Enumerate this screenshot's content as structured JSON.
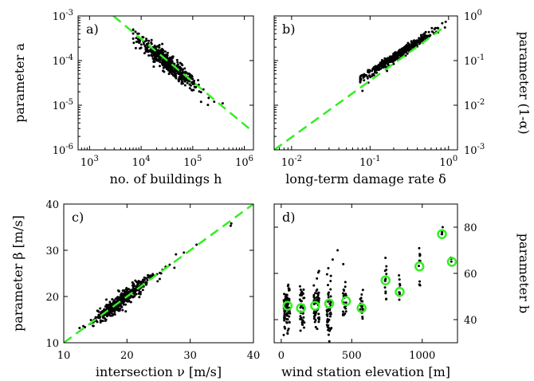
{
  "colors": {
    "fit": "#33ee22",
    "points": "#000000",
    "axes": "#000000"
  },
  "chart_data": [
    {
      "id": "a",
      "panel_label": "a)",
      "type": "scatter",
      "xlabel": "no. of buildings h",
      "ylabel": "parameter a",
      "xscale": "log",
      "yscale": "log",
      "xlim": [
        600,
        1500000
      ],
      "ylim": [
        1e-06,
        0.001
      ],
      "xticks": [
        {
          "v": 1000,
          "b": "10",
          "e": "3"
        },
        {
          "v": 10000,
          "b": "10",
          "e": "4"
        },
        {
          "v": 100000,
          "b": "10",
          "e": "5"
        },
        {
          "v": 1000000,
          "b": "10",
          "e": "6"
        }
      ],
      "yticks": [
        {
          "v": 1e-06,
          "b": "10",
          "e": "-6"
        },
        {
          "v": 1e-05,
          "b": "10",
          "e": "-5"
        },
        {
          "v": 0.0001,
          "b": "10",
          "e": "-4"
        },
        {
          "v": 0.001,
          "b": "10",
          "e": "-3"
        }
      ],
      "fit_line": [
        [
          2900,
          0.001
        ],
        [
          1500000,
          2.5e-06
        ]
      ],
      "cloud": {
        "n": 500,
        "center_x": 34000,
        "center_y": 8.5e-05,
        "sd_logx": 0.28,
        "slope": -0.95,
        "sd_resid": 0.1,
        "xmin": 7000,
        "xmax": 380000
      },
      "points": [
        [
          8500,
          0.0004
        ],
        [
          7200,
          0.00025
        ],
        [
          380000,
          1.1e-05
        ],
        [
          260000,
          1.2e-05
        ],
        [
          95000,
          2.2e-05
        ]
      ]
    },
    {
      "id": "b",
      "panel_label": "b)",
      "type": "scatter",
      "xlabel": "long-term damage rate δ",
      "ylabel_right": "parameter (1-α)",
      "xscale": "log",
      "yscale": "log",
      "xlim": [
        0.006,
        1.3
      ],
      "ylim": [
        0.001,
        1
      ],
      "xticks": [
        {
          "v": 0.01,
          "b": "10",
          "e": "-2"
        },
        {
          "v": 0.1,
          "b": "10",
          "e": "-1"
        },
        {
          "v": 1,
          "b": "10",
          "e": "0"
        }
      ],
      "yticks": [
        {
          "v": 0.001,
          "b": "10",
          "e": "-3"
        },
        {
          "v": 0.01,
          "b": "10",
          "e": "-2"
        },
        {
          "v": 0.1,
          "b": "10",
          "e": "-1"
        },
        {
          "v": 1,
          "b": "10",
          "e": "0"
        }
      ],
      "fit_line": [
        [
          0.006,
          0.001
        ],
        [
          0.93,
          0.6
        ]
      ],
      "cloud": {
        "n": 500,
        "center_x": 0.22,
        "center_y": 0.13,
        "sd_logx": 0.22,
        "slope": 1.15,
        "sd_resid": 0.05,
        "xmin": 0.075,
        "xmax": 0.92
      },
      "points": [
        [
          0.08,
          0.021
        ],
        [
          0.095,
          0.032
        ],
        [
          0.9,
          0.55
        ]
      ]
    },
    {
      "id": "c",
      "panel_label": "c)",
      "type": "scatter",
      "xlabel": "intersection ν [m/s]",
      "ylabel": "parameter β [m/s]",
      "xscale": "linear",
      "yscale": "linear",
      "xlim": [
        10,
        40
      ],
      "ylim": [
        10,
        40
      ],
      "xticks": [
        {
          "v": 10,
          "t": "10"
        },
        {
          "v": 20,
          "t": "20"
        },
        {
          "v": 30,
          "t": "30"
        },
        {
          "v": 40,
          "t": "40"
        }
      ],
      "yticks": [
        {
          "v": 10,
          "t": "10"
        },
        {
          "v": 20,
          "t": "20"
        },
        {
          "v": 30,
          "t": "30"
        },
        {
          "v": 40,
          "t": "40"
        }
      ],
      "fit_line": [
        [
          10,
          10
        ],
        [
          40,
          40
        ]
      ],
      "cloud": {
        "n": 450,
        "center_x": 17.5,
        "center_y": 17.5,
        "sd_x": 2.2,
        "slope": 1.0,
        "sd_resid": 0.8,
        "xmin": 12.5,
        "xmax": 33
      },
      "points": [
        [
          36.5,
          35.8
        ],
        [
          36.4,
          35.3
        ],
        [
          12.5,
          13.2
        ],
        [
          13.1,
          13.6
        ],
        [
          31,
          31.2
        ],
        [
          29,
          29.5
        ],
        [
          27.5,
          26.2
        ]
      ]
    },
    {
      "id": "d",
      "panel_label": "d)",
      "type": "scatter",
      "xlabel": "wind station elevation [m]",
      "ylabel_right": "parameter b",
      "xscale": "linear",
      "yscale": "linear",
      "xlim": [
        -50,
        1250
      ],
      "ylim": [
        30,
        90
      ],
      "xticks": [
        {
          "v": 0,
          "t": "0"
        },
        {
          "v": 500,
          "t": "500"
        },
        {
          "v": 1000,
          "t": "1000"
        }
      ],
      "yticks": [
        {
          "v": 40,
          "t": "40"
        },
        {
          "v": 60,
          "t": "60"
        },
        {
          "v": 80,
          "t": "80"
        }
      ],
      "columns": [
        {
          "x": 40,
          "n": 90,
          "spread": 45,
          "y_mean": 45,
          "y_sd": 4.5
        },
        {
          "x": 150,
          "n": 45,
          "spread": 35,
          "y_mean": 45,
          "y_sd": 5
        },
        {
          "x": 250,
          "n": 55,
          "spread": 40,
          "y_mean": 46,
          "y_sd": 6
        },
        {
          "x": 340,
          "n": 50,
          "spread": 35,
          "y_mean": 47,
          "y_sd": 7
        },
        {
          "x": 450,
          "n": 25,
          "spread": 25,
          "y_mean": 48,
          "y_sd": 5
        },
        {
          "x": 570,
          "n": 18,
          "spread": 20,
          "y_mean": 45,
          "y_sd": 3
        },
        {
          "x": 740,
          "n": 14,
          "spread": 12,
          "y_mean": 56,
          "y_sd": 5
        },
        {
          "x": 840,
          "n": 10,
          "spread": 10,
          "y_mean": 52,
          "y_sd": 3
        },
        {
          "x": 980,
          "n": 10,
          "spread": 12,
          "y_mean": 63,
          "y_sd": 5
        },
        {
          "x": 1140,
          "n": 4,
          "spread": 4,
          "y_mean": 78,
          "y_sd": 1.5
        },
        {
          "x": 1205,
          "n": 3,
          "spread": 4,
          "y_mean": 65,
          "y_sd": 1.5
        }
      ],
      "points": [
        [
          400,
          70
        ],
        [
          365,
          66
        ],
        [
          440,
          64
        ],
        [
          1145,
          80
        ],
        [
          985,
          68
        ],
        [
          255,
          36
        ]
      ],
      "means": [
        {
          "x": 45,
          "y": 46
        },
        {
          "x": 140,
          "y": 45
        },
        {
          "x": 240,
          "y": 46
        },
        {
          "x": 340,
          "y": 47
        },
        {
          "x": 460,
          "y": 48
        },
        {
          "x": 570,
          "y": 45
        },
        {
          "x": 740,
          "y": 57
        },
        {
          "x": 840,
          "y": 52
        },
        {
          "x": 980,
          "y": 63
        },
        {
          "x": 1140,
          "y": 77
        },
        {
          "x": 1210,
          "y": 65
        }
      ]
    }
  ]
}
